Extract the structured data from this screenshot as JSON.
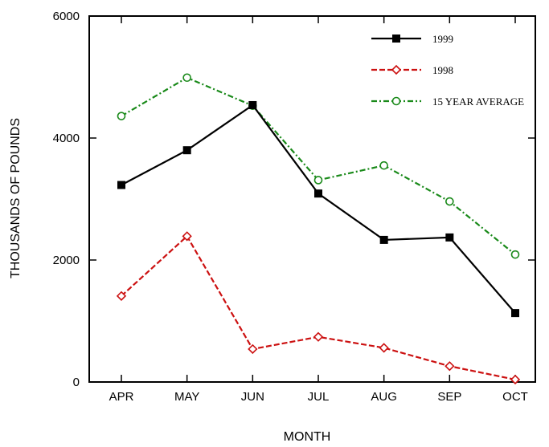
{
  "chart_data": {
    "type": "line",
    "categories": [
      "APR",
      "MAY",
      "JUN",
      "JUL",
      "AUG",
      "SEP",
      "OCT"
    ],
    "xlabel": "MONTH",
    "ylabel": "THOUSANDS OF POUNDS",
    "ylim": [
      0,
      6000
    ],
    "yticks": [
      0,
      2000,
      4000,
      6000
    ],
    "grid": false,
    "legend_position": "top-right",
    "series": [
      {
        "name": "1999",
        "color": "#000000",
        "marker": "filled-square",
        "line": "solid",
        "values": [
          3230,
          3800,
          4540,
          3090,
          2330,
          2370,
          1130
        ]
      },
      {
        "name": "1998",
        "color": "#cc1111",
        "marker": "open-diamond",
        "line": "dashed",
        "values": [
          1410,
          2390,
          540,
          740,
          560,
          260,
          40
        ]
      },
      {
        "name": "15 YEAR AVERAGE",
        "color": "#1a8a1a",
        "marker": "open-circle",
        "line": "dash-dot",
        "values": [
          4360,
          4990,
          4530,
          3310,
          3550,
          2960,
          2090
        ]
      }
    ]
  }
}
